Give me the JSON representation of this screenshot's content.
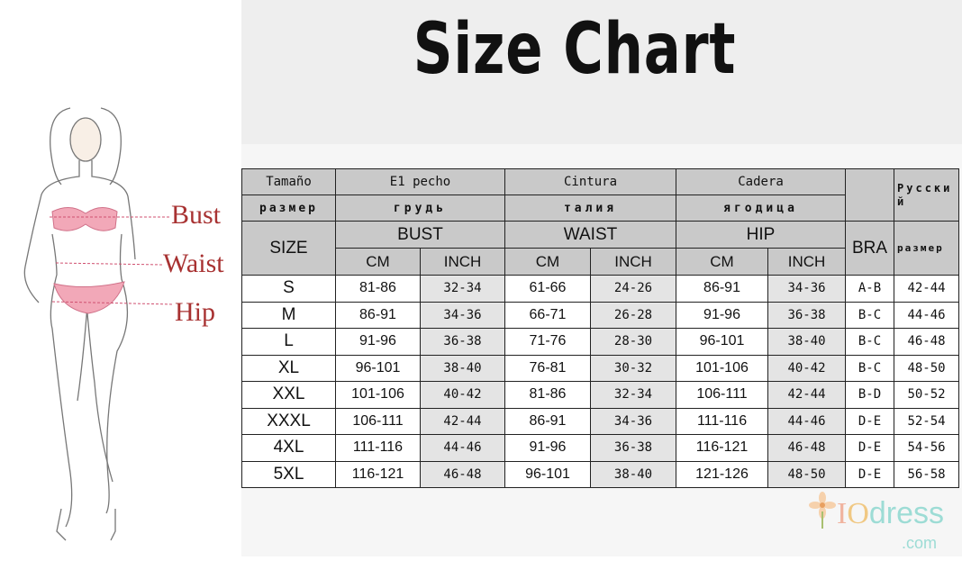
{
  "title": "Size Chart",
  "figure": {
    "labels": [
      "Bust",
      "Waist",
      "Hip"
    ]
  },
  "table": {
    "row1": [
      "Tamaño",
      "E1 pecho",
      "Cintura",
      "Cadera",
      "Русский"
    ],
    "row2": [
      "размер",
      "грудь",
      "талия",
      "ягодица"
    ],
    "row3": [
      "SIZE",
      "BUST",
      "WAIST",
      "HIP",
      "BRA",
      "размер"
    ],
    "row4": [
      "CM",
      "INCH",
      "CM",
      "INCH",
      "CM",
      "INCH"
    ],
    "rows": [
      [
        "S",
        "81-86",
        "32-34",
        "61-66",
        "24-26",
        "86-91",
        "34-36",
        "A-B",
        "42-44"
      ],
      [
        "M",
        "86-91",
        "34-36",
        "66-71",
        "26-28",
        "91-96",
        "36-38",
        "B-C",
        "44-46"
      ],
      [
        "L",
        "91-96",
        "36-38",
        "71-76",
        "28-30",
        "96-101",
        "38-40",
        "B-C",
        "46-48"
      ],
      [
        "XL",
        "96-101",
        "38-40",
        "76-81",
        "30-32",
        "101-106",
        "40-42",
        "B-C",
        "48-50"
      ],
      [
        "XXL",
        "101-106",
        "40-42",
        "81-86",
        "32-34",
        "106-111",
        "42-44",
        "B-D",
        "50-52"
      ],
      [
        "XXXL",
        "106-111",
        "42-44",
        "86-91",
        "34-36",
        "111-116",
        "44-46",
        "D-E",
        "52-54"
      ],
      [
        "4XL",
        "111-116",
        "44-46",
        "91-96",
        "36-38",
        "116-121",
        "46-48",
        "D-E",
        "54-56"
      ],
      [
        "5XL",
        "116-121",
        "46-48",
        "96-101",
        "38-40",
        "121-126",
        "48-50",
        "D-E",
        "56-58"
      ]
    ]
  },
  "watermark": {
    "brand": "IOdress",
    "domain": ".com"
  }
}
